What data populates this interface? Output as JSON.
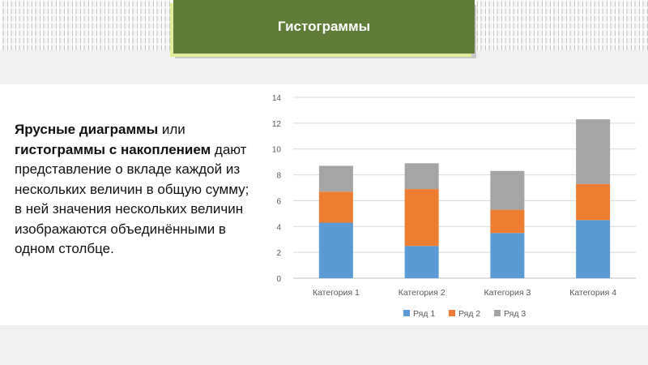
{
  "slide": {
    "title": "Гистограммы",
    "description": {
      "bold_1": "Ярусные диаграммы",
      "text_1": " или ",
      "bold_2": "гистограммы с накоплением",
      "text_2": " дают представление о вкладе каждой из нескольких величин в общую сумму; в ней значения нескольких величин изображаются объединёнными в одном столбце."
    }
  },
  "chart_data": {
    "type": "bar",
    "stacked": true,
    "categories": [
      "Категория 1",
      "Категория 2",
      "Категория 3",
      "Категория 4"
    ],
    "series": [
      {
        "name": "Ряд 1",
        "color": "#5b9bd5",
        "values": [
          4.3,
          2.5,
          3.5,
          4.5
        ]
      },
      {
        "name": "Ряд 2",
        "color": "#ed7d31",
        "values": [
          2.4,
          4.4,
          1.8,
          2.8
        ]
      },
      {
        "name": "Ряд 3",
        "color": "#a5a5a5",
        "values": [
          2.0,
          2.0,
          3.0,
          5.0
        ]
      }
    ],
    "ylim": [
      0,
      14
    ],
    "yticks": [
      "0",
      "2",
      "4",
      "6",
      "8",
      "10",
      "12",
      "14"
    ],
    "grid": true,
    "legend": "bottom"
  }
}
